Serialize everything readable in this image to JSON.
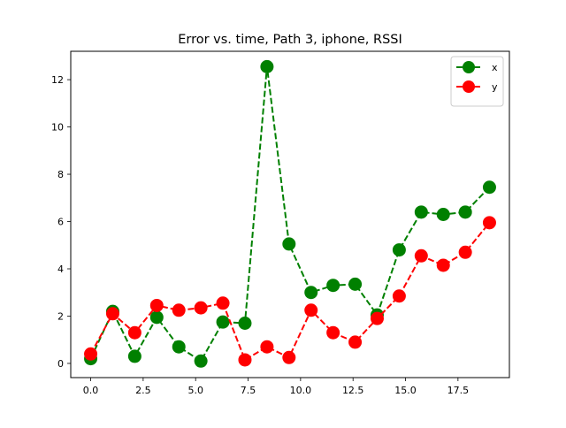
{
  "chart_data": {
    "type": "line",
    "title": "Error vs. time, Path 3, iphone, RSSI",
    "xlabel": "",
    "ylabel": "",
    "xlim": [
      -0.95,
      19.95
    ],
    "ylim": [
      -0.6,
      13.2
    ],
    "x_ticks": [
      0.0,
      2.5,
      5.0,
      7.5,
      10.0,
      12.5,
      15.0,
      17.5
    ],
    "x_tick_labels": [
      "0.0",
      "2.5",
      "5.0",
      "7.5",
      "10.0",
      "12.5",
      "15.0",
      "17.5"
    ],
    "y_ticks": [
      0,
      2,
      4,
      6,
      8,
      10,
      12
    ],
    "y_tick_labels": [
      "0",
      "2",
      "4",
      "6",
      "8",
      "10",
      "12"
    ],
    "grid": false,
    "legend_position": "top-right",
    "x": [
      0,
      1.05,
      2.1,
      3.15,
      4.2,
      5.25,
      6.3,
      7.35,
      8.4,
      9.45,
      10.5,
      11.55,
      12.6,
      13.65,
      14.7,
      15.75,
      16.8,
      17.85,
      19.0
    ],
    "series": [
      {
        "name": "x",
        "color": "#008000",
        "linestyle": "dashed",
        "marker": "circle",
        "values": [
          0.2,
          2.2,
          0.3,
          1.95,
          0.7,
          0.1,
          1.75,
          1.7,
          12.55,
          5.05,
          3.0,
          3.3,
          3.35,
          2.05,
          4.8,
          6.4,
          6.3,
          6.4,
          7.45
        ]
      },
      {
        "name": "y",
        "color": "#ff0000",
        "linestyle": "dashed",
        "marker": "circle",
        "values": [
          0.4,
          2.1,
          1.3,
          2.45,
          2.25,
          2.35,
          2.55,
          0.15,
          0.7,
          0.25,
          2.25,
          1.3,
          0.9,
          1.9,
          2.85,
          4.55,
          4.15,
          4.7,
          5.95
        ]
      }
    ]
  }
}
